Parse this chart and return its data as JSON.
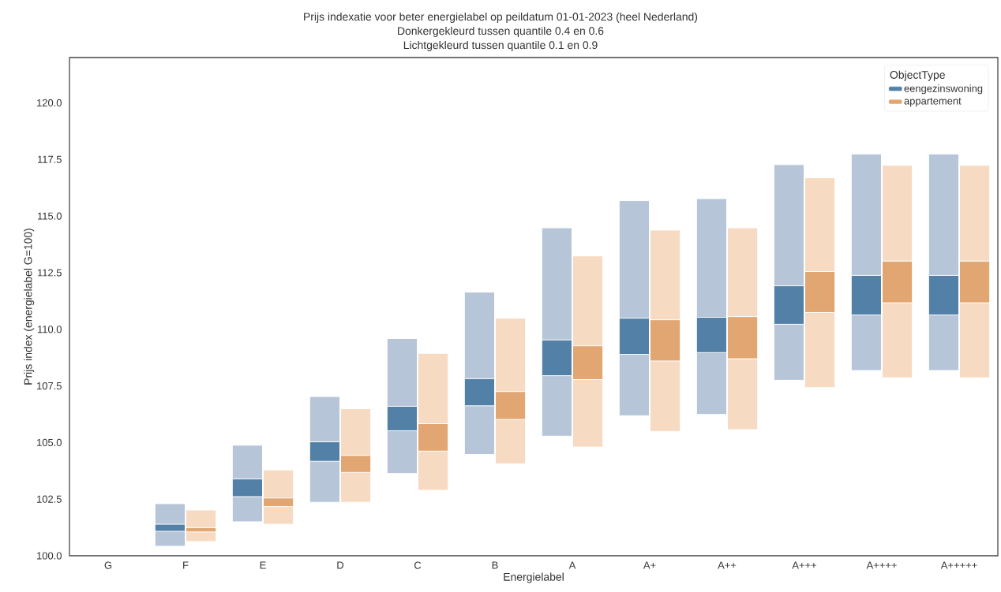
{
  "chart_data": {
    "type": "bar",
    "title": "Prijs indexatie voor beter energielabel op peildatum 01-01-2023 (heel Nederland)",
    "subtitle": "Donkergekleurd tussen quantile 0.4 en 0.6",
    "annotations": [
      "Lichtgekleurd tussen quantile 0.1 en 0.9"
    ],
    "xlabel": "Energielabel",
    "ylabel": "Prijs index (energielabel G=100)",
    "legend_title": "ObjectType",
    "legend": "top right",
    "categories": [
      "G",
      "F",
      "E",
      "D",
      "C",
      "B",
      "A",
      "A+",
      "A++",
      "A+++",
      "A++++",
      "A+++++"
    ],
    "ylim": [
      100,
      122
    ],
    "yticks": [
      {
        "value": 100,
        "label": "100.0"
      },
      {
        "value": 102.5,
        "label": "102.5"
      },
      {
        "value": 105,
        "label": "105.0"
      },
      {
        "value": 107.5,
        "label": "107.5"
      },
      {
        "value": 110,
        "label": "110.0"
      },
      {
        "value": 112.5,
        "label": "112.5"
      },
      {
        "value": 115,
        "label": "115.0"
      },
      {
        "value": 117.5,
        "label": "117.5"
      },
      {
        "value": 120,
        "label": "120.0"
      }
    ],
    "series": [
      {
        "color": "#b6c5d8",
        "base": [
          null,
          100.42,
          101.5,
          102.36,
          103.63,
          104.47,
          105.28,
          106.18,
          106.24,
          107.75,
          108.18,
          108.18
        ],
        "values": [
          null,
          1.88,
          3.38,
          4.67,
          5.96,
          7.17,
          9.2,
          9.5,
          9.53,
          9.52,
          9.56,
          9.56
        ]
      },
      {
        "name": "eengezinswoning",
        "color": "#5380a6",
        "base": [
          null,
          101.08,
          102.61,
          104.17,
          105.52,
          106.62,
          107.95,
          108.89,
          108.97,
          110.22,
          110.63,
          110.63
        ],
        "values": [
          null,
          0.31,
          0.78,
          0.86,
          1.08,
          1.2,
          1.58,
          1.6,
          1.56,
          1.7,
          1.75,
          1.75
        ]
      },
      {
        "color": "#f6dbc2",
        "base": [
          null,
          100.63,
          101.39,
          102.36,
          102.89,
          104.06,
          104.8,
          105.49,
          105.57,
          107.42,
          107.86,
          107.86
        ],
        "values": [
          null,
          1.39,
          2.4,
          4.13,
          6.05,
          6.43,
          8.44,
          8.89,
          8.91,
          9.27,
          9.38,
          9.38
        ]
      },
      {
        "name": "appartement",
        "color": "#e1a672",
        "base": [
          null,
          101.05,
          102.17,
          103.68,
          104.62,
          106.02,
          107.78,
          108.6,
          108.7,
          110.74,
          111.17,
          111.17
        ],
        "values": [
          null,
          0.19,
          0.38,
          0.75,
          1.21,
          1.23,
          1.49,
          1.82,
          1.86,
          1.81,
          1.84,
          1.84
        ]
      }
    ]
  }
}
